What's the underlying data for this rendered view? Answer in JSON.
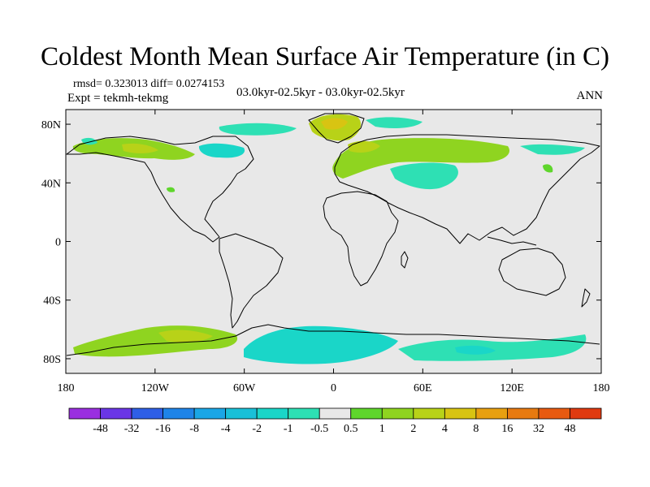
{
  "title": "Coldest Month Mean Surface Air Temperature (in C)",
  "stats": "rmsd= 0.323013  diff= 0.0274153",
  "experiment": "Expt = tekmh-tekmg",
  "period": "03.0kyr-02.5kyr - 03.0kyr-02.5kyr",
  "season": "ANN",
  "chart_data": {
    "type": "heatmap",
    "projection": "cylindrical equidistant",
    "lon_ticks": [
      "180",
      "120W",
      "60W",
      "0",
      "60E",
      "120E",
      "180"
    ],
    "lat_ticks": [
      "80N",
      "40N",
      "0",
      "40S",
      "80S"
    ],
    "background_color": "#e8e8e8",
    "colorbar": {
      "levels": [
        "-48",
        "-32",
        "-16",
        "-8",
        "-4",
        "-2",
        "-1",
        "-0.5",
        "0.5",
        "1",
        "2",
        "4",
        "8",
        "16",
        "32",
        "48"
      ],
      "colors": [
        "#9a2fe0",
        "#6a36e6",
        "#2f5fe6",
        "#1f84e8",
        "#1aa6e6",
        "#19c0d8",
        "#1ad6c8",
        "#2ee0b4",
        "#e8e8e8",
        "#5fd62c",
        "#8fd420",
        "#b8d218",
        "#d8c412",
        "#e8a010",
        "#e87a10",
        "#e85a10",
        "#e03a10"
      ]
    },
    "anomaly_regions": [
      {
        "region": "Alaska / Yukon",
        "range": "1 to 4"
      },
      {
        "region": "Greenland",
        "range": "4 to 8"
      },
      {
        "region": "Scandinavia / Barents Sea",
        "range": "1 to 4"
      },
      {
        "region": "Northern Eurasia",
        "range": "1 to 2"
      },
      {
        "region": "Hudson Bay",
        "range": "-1 to -0.5"
      },
      {
        "region": "Labrador Sea",
        "range": "-1 to -0.5"
      },
      {
        "region": "Central Asia",
        "range": "-1 to -0.5"
      },
      {
        "region": "Southern Ocean (Pacific sector)",
        "range": "1 to 4"
      },
      {
        "region": "Southern Ocean (Atlantic/Indian sectors)",
        "range": "-2 to -0.5"
      }
    ]
  }
}
